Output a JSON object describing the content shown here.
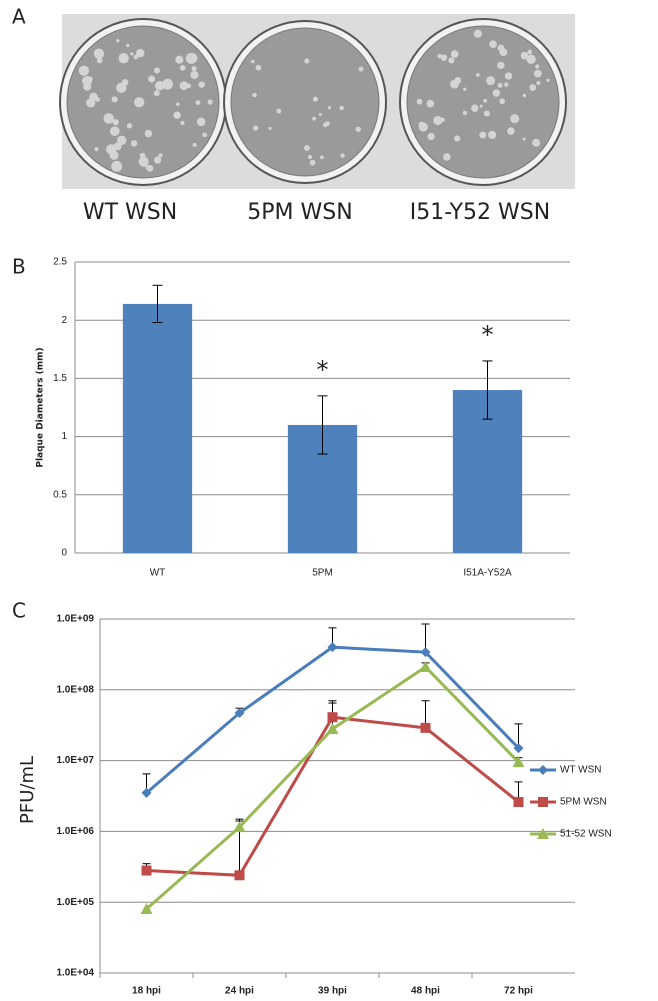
{
  "panel_a": {
    "label": "A",
    "captions": [
      "WT WSN",
      "5PM WSN",
      "I51-Y52 WSN"
    ]
  },
  "chart_data": [
    {
      "type": "bar",
      "label": "B",
      "ylabel": "Plaque Diameters (mm)",
      "categories": [
        "WT",
        "5PM",
        "I51A-Y52A"
      ],
      "values": [
        2.14,
        1.1,
        1.4
      ],
      "errors": [
        0.16,
        0.25,
        0.25
      ],
      "color": "#4f81bd",
      "ylim": [
        0,
        2.5
      ],
      "yticks": [
        0,
        0.5,
        1,
        1.5,
        2,
        2.5
      ],
      "grid": true,
      "annotations": [
        {
          "text": "*",
          "category": "5PM"
        },
        {
          "text": "*",
          "category": "I51A-Y52A"
        }
      ]
    },
    {
      "type": "line",
      "label": "C",
      "ylabel": "PFU/mL",
      "log_scale": true,
      "grid": true,
      "legend": "right",
      "categories": [
        "18 hpi",
        "24 hpi",
        "39 hpi",
        "48 hpi",
        "72 hpi"
      ],
      "ylim": [
        10000,
        1000000000
      ],
      "yticks": [
        {
          "value": 10000,
          "label": "1.0E+04"
        },
        {
          "value": 100000,
          "label": "1.0E+05"
        },
        {
          "value": 1000000,
          "label": "1.0E+06"
        },
        {
          "value": 10000000,
          "label": "1.0E+07"
        },
        {
          "value": 100000000,
          "label": "1.0E+08"
        },
        {
          "value": 1000000000,
          "label": "1.0E+09"
        }
      ],
      "series": [
        {
          "name": "WT WSN",
          "color": "#4a7ebb",
          "marker": "diamond",
          "values": [
            3500000,
            47000000,
            400000000,
            340000000,
            15000000
          ],
          "errors": [
            3000000,
            8000000,
            350000000,
            510000000,
            18000000
          ]
        },
        {
          "name": "5PM WSN",
          "color": "#be4b48",
          "marker": "square",
          "values": [
            280000,
            240000,
            41000000,
            29000000,
            2600000
          ],
          "errors": [
            70000,
            1250000,
            29000000,
            41000000,
            2400000
          ]
        },
        {
          "name": "51-52 WSN",
          "color": "#98b954",
          "marker": "triangle",
          "values": [
            80000,
            1150000,
            28000000,
            210000000,
            9500000
          ],
          "errors": [
            null,
            250000,
            37000000,
            30000000,
            1500000
          ]
        }
      ]
    }
  ]
}
